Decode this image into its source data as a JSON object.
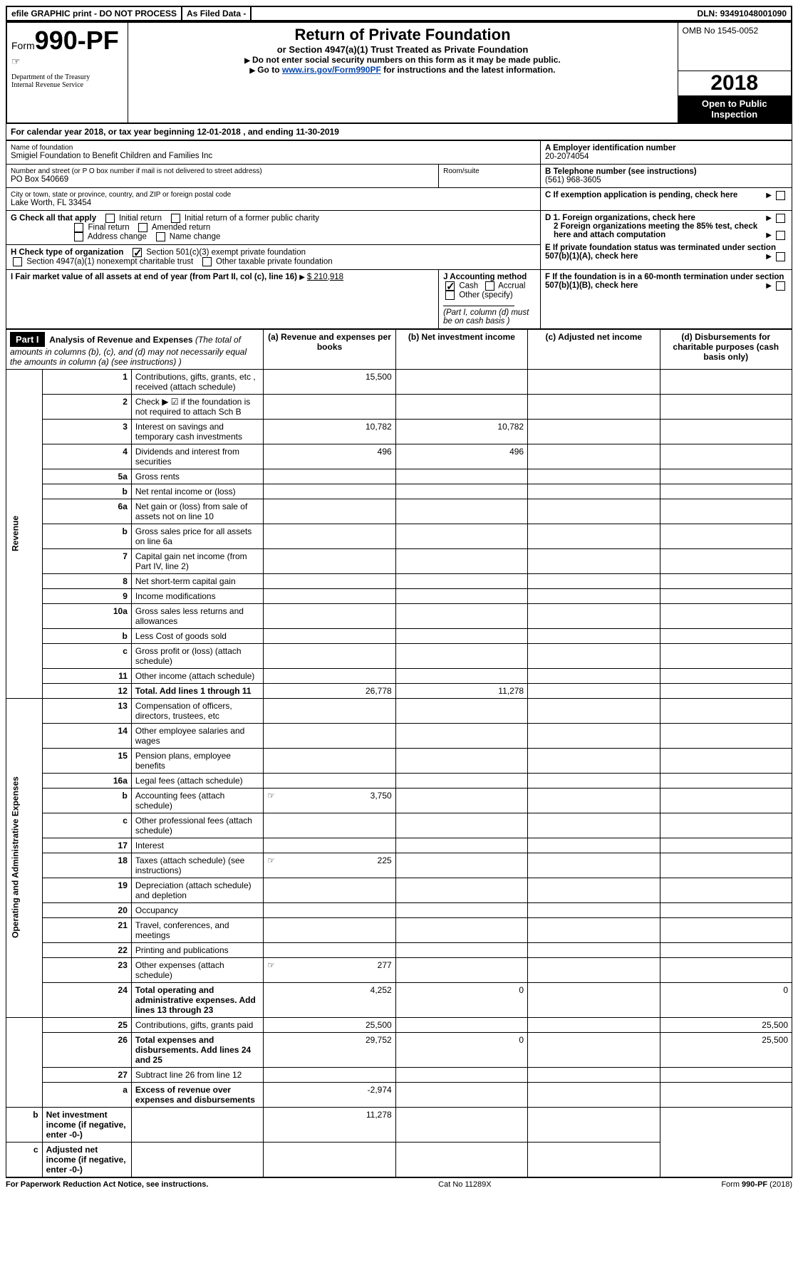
{
  "topbar": {
    "efile": "efile GRAPHIC print - DO NOT PROCESS",
    "asfiled": "As Filed Data -",
    "dln_label": "DLN:",
    "dln": "93491048001090"
  },
  "header": {
    "form_pre": "Form",
    "form_num": "990-PF",
    "dept": "Department of the Treasury",
    "irs": "Internal Revenue Service",
    "title": "Return of Private Foundation",
    "subtitle": "or Section 4947(a)(1) Trust Treated as Private Foundation",
    "instr1": "Do not enter social security numbers on this form as it may be made public.",
    "instr2_pre": "Go to ",
    "instr2_link": "www.irs.gov/Form990PF",
    "instr2_post": " for instructions and the latest information.",
    "omb": "OMB No 1545-0052",
    "year": "2018",
    "open": "Open to Public Inspection"
  },
  "cal": {
    "text_pre": "For calendar year 2018, or tax year beginning ",
    "begin": "12-01-2018",
    "text_mid": " , and ending ",
    "end": "11-30-2019"
  },
  "info": {
    "name_label": "Name of foundation",
    "name": "Smigiel Foundation to Benefit Children and Families Inc",
    "addr_label": "Number and street (or P O box number if mail is not delivered to street address)",
    "addr": "PO Box 540669",
    "room_label": "Room/suite",
    "city_label": "City or town, state or province, country, and ZIP or foreign postal code",
    "city": "Lake Worth, FL 33454",
    "a_label": "A Employer identification number",
    "a_val": "20-2074054",
    "b_label": "B Telephone number (see instructions)",
    "b_val": "(561) 968-3605",
    "c_label": "C If exemption application is pending, check here",
    "g_label": "G Check all that apply",
    "g_initial": "Initial return",
    "g_initial_former": "Initial return of a former public charity",
    "g_final": "Final return",
    "g_amended": "Amended return",
    "g_address": "Address change",
    "g_name": "Name change",
    "d1": "D 1. Foreign organizations, check here",
    "d2": "2 Foreign organizations meeting the 85% test, check here and attach computation",
    "e": "E If private foundation status was terminated under section 507(b)(1)(A), check here",
    "h_label": "H Check type of organization",
    "h_501c3": "Section 501(c)(3) exempt private foundation",
    "h_4947": "Section 4947(a)(1) nonexempt charitable trust",
    "h_other": "Other taxable private foundation",
    "f": "F If the foundation is in a 60-month termination under section 507(b)(1)(B), check here",
    "i_label": "I Fair market value of all assets at end of year (from Part II, col (c), line 16)",
    "i_val": "$ 210,918",
    "j_label": "J Accounting method",
    "j_cash": "Cash",
    "j_accrual": "Accrual",
    "j_other": "Other (specify)",
    "j_note": "(Part I, column (d) must be on cash basis )"
  },
  "part1": {
    "label": "Part I",
    "title": "Analysis of Revenue and Expenses",
    "title_note": "(The total of amounts in columns (b), (c), and (d) may not necessarily equal the amounts in column (a) (see instructions) )",
    "col_a": "(a) Revenue and expenses per books",
    "col_b": "(b) Net investment income",
    "col_c": "(c) Adjusted net income",
    "col_d": "(d) Disbursements for charitable purposes (cash basis only)",
    "side_revenue": "Revenue",
    "side_expenses": "Operating and Administrative Expenses",
    "rows": [
      {
        "n": "1",
        "d": "Contributions, gifts, grants, etc , received (attach schedule)",
        "a": "15,500"
      },
      {
        "n": "2",
        "d": "Check ▶ ☑ if the foundation is not required to attach Sch B"
      },
      {
        "n": "3",
        "d": "Interest on savings and temporary cash investments",
        "a": "10,782",
        "b": "10,782"
      },
      {
        "n": "4",
        "d": "Dividends and interest from securities",
        "a": "496",
        "b": "496"
      },
      {
        "n": "5a",
        "d": "Gross rents"
      },
      {
        "n": "b",
        "d": "Net rental income or (loss)"
      },
      {
        "n": "6a",
        "d": "Net gain or (loss) from sale of assets not on line 10"
      },
      {
        "n": "b",
        "d": "Gross sales price for all assets on line 6a"
      },
      {
        "n": "7",
        "d": "Capital gain net income (from Part IV, line 2)"
      },
      {
        "n": "8",
        "d": "Net short-term capital gain"
      },
      {
        "n": "9",
        "d": "Income modifications"
      },
      {
        "n": "10a",
        "d": "Gross sales less returns and allowances"
      },
      {
        "n": "b",
        "d": "Less Cost of goods sold"
      },
      {
        "n": "c",
        "d": "Gross profit or (loss) (attach schedule)"
      },
      {
        "n": "11",
        "d": "Other income (attach schedule)"
      },
      {
        "n": "12",
        "d": "Total. Add lines 1 through 11",
        "a": "26,778",
        "b": "11,278",
        "bold": true
      },
      {
        "n": "13",
        "d": "Compensation of officers, directors, trustees, etc"
      },
      {
        "n": "14",
        "d": "Other employee salaries and wages"
      },
      {
        "n": "15",
        "d": "Pension plans, employee benefits"
      },
      {
        "n": "16a",
        "d": "Legal fees (attach schedule)"
      },
      {
        "n": "b",
        "d": "Accounting fees (attach schedule)",
        "a": "3,750",
        "icon": true
      },
      {
        "n": "c",
        "d": "Other professional fees (attach schedule)"
      },
      {
        "n": "17",
        "d": "Interest"
      },
      {
        "n": "18",
        "d": "Taxes (attach schedule) (see instructions)",
        "a": "225",
        "icon": true
      },
      {
        "n": "19",
        "d": "Depreciation (attach schedule) and depletion"
      },
      {
        "n": "20",
        "d": "Occupancy"
      },
      {
        "n": "21",
        "d": "Travel, conferences, and meetings"
      },
      {
        "n": "22",
        "d": "Printing and publications"
      },
      {
        "n": "23",
        "d": "Other expenses (attach schedule)",
        "a": "277",
        "icon": true
      },
      {
        "n": "24",
        "d": "Total operating and administrative expenses. Add lines 13 through 23",
        "a": "4,252",
        "b": "0",
        "dd": "0",
        "bold": true
      },
      {
        "n": "25",
        "d": "Contributions, gifts, grants paid",
        "a": "25,500",
        "dd": "25,500"
      },
      {
        "n": "26",
        "d": "Total expenses and disbursements. Add lines 24 and 25",
        "a": "29,752",
        "b": "0",
        "dd": "25,500",
        "bold": true
      },
      {
        "n": "27",
        "d": "Subtract line 26 from line 12"
      },
      {
        "n": "a",
        "d": "Excess of revenue over expenses and disbursements",
        "a": "-2,974",
        "bold": true
      },
      {
        "n": "b",
        "d": "Net investment income (if negative, enter -0-)",
        "b": "11,278",
        "bold": true
      },
      {
        "n": "c",
        "d": "Adjusted net income (if negative, enter -0-)",
        "bold": true
      }
    ]
  },
  "footer": {
    "left": "For Paperwork Reduction Act Notice, see instructions.",
    "mid": "Cat No 11289X",
    "right": "Form 990-PF (2018)"
  }
}
